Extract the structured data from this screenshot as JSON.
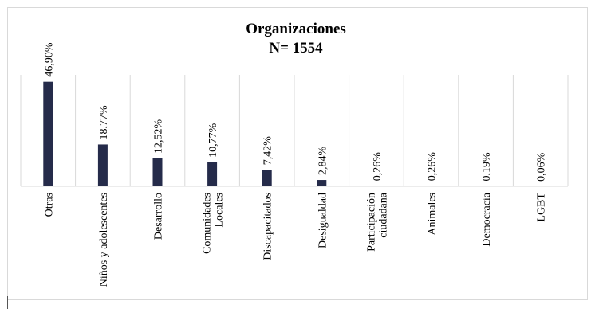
{
  "chart_data": {
    "type": "bar",
    "title": "Organizaciones",
    "subtitle": "N= 1554",
    "categories": [
      [
        "Otras"
      ],
      [
        "Niños y adolescentes"
      ],
      [
        "Desarrollo"
      ],
      [
        "Comunidades",
        "Locales"
      ],
      [
        "Discapacitados"
      ],
      [
        "Desigualdad"
      ],
      [
        "Participación",
        "ciudadana"
      ],
      [
        "Animales"
      ],
      [
        "Democracia"
      ],
      [
        "LGBT"
      ]
    ],
    "values": [
      46.9,
      18.77,
      12.52,
      10.77,
      7.42,
      2.84,
      0.26,
      0.26,
      0.19,
      0.06
    ],
    "data_labels": [
      "46,90%",
      "18,77%",
      "12,52%",
      "10,77%",
      "7,42%",
      "2,84%",
      "0,26%",
      "0,26%",
      "0,19%",
      "0,06%"
    ],
    "ylim": [
      0,
      50
    ],
    "grid": "vertical",
    "legend": "none",
    "bar_color": "#252b4a",
    "grid_color": "#d9d9d9"
  }
}
